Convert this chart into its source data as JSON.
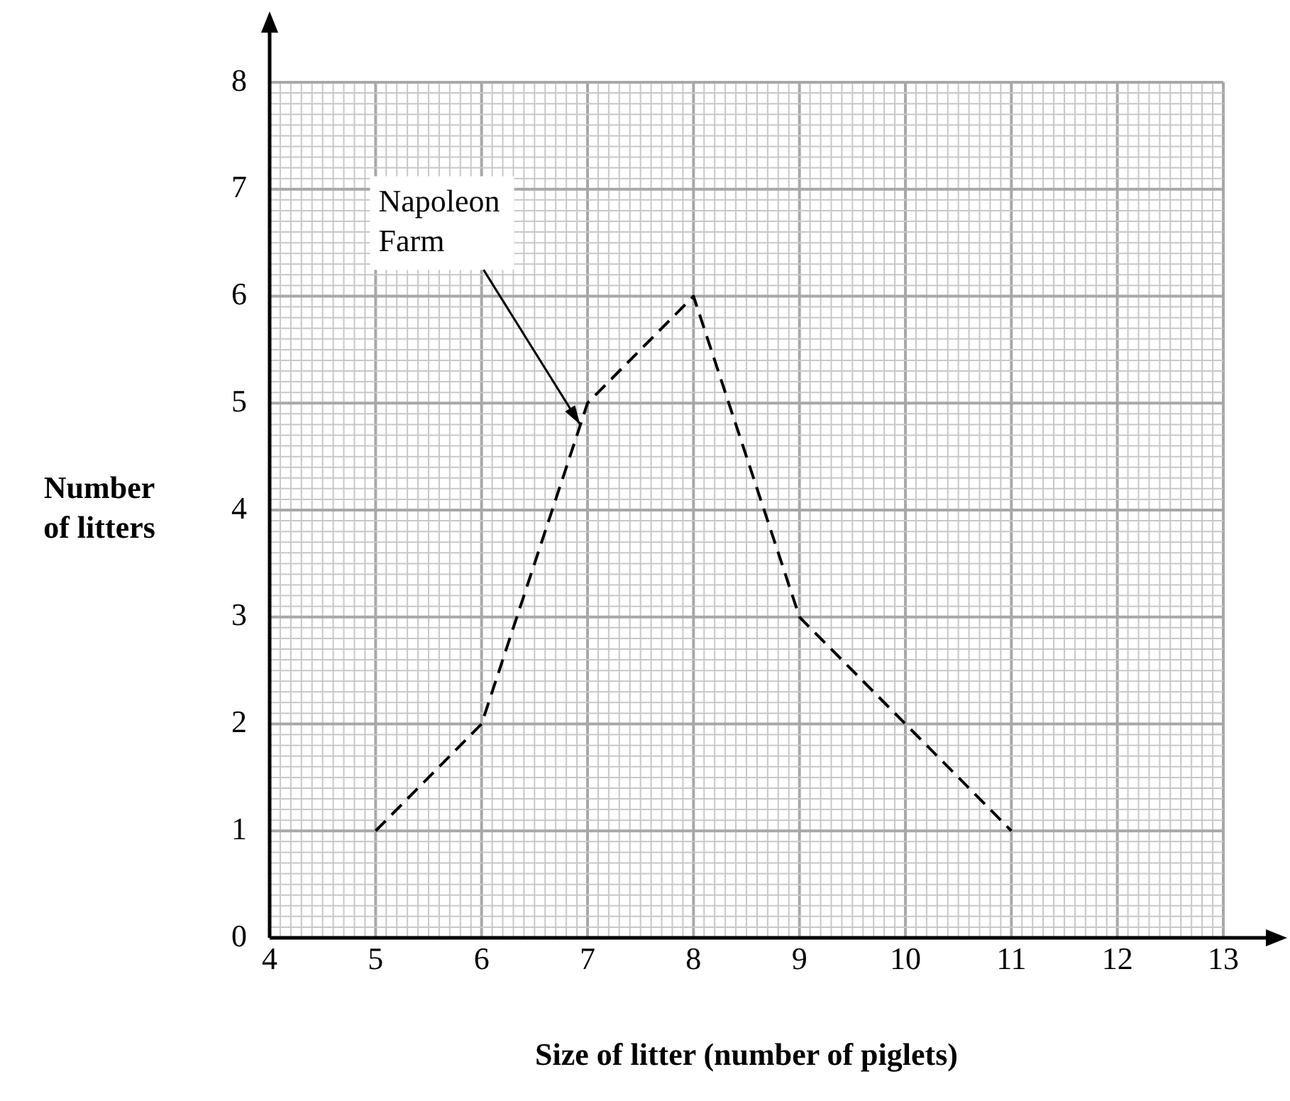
{
  "chart_data": {
    "type": "line",
    "xlabel": "Size of litter (number of piglets)",
    "ylabel": "Number of litters",
    "x": [
      5,
      6,
      7,
      8,
      9,
      10,
      11
    ],
    "series": [
      {
        "color": "#000000",
        "values": [
          1,
          2,
          5,
          6,
          3,
          2,
          1
        ]
      }
    ],
    "xlim": [
      4,
      13
    ],
    "xticks": [
      4,
      5,
      6,
      7,
      8,
      9,
      10,
      11,
      12,
      13
    ],
    "ylim": [
      0,
      8
    ],
    "yticks": [
      0,
      1,
      2,
      3,
      4,
      5,
      6,
      7,
      8
    ],
    "grid": true,
    "legend": false,
    "marker": "none",
    "line_style": "dashed",
    "annotations": [
      {
        "text": "Napoleon Farm",
        "x": 6.93,
        "y": 4.8
      }
    ]
  }
}
